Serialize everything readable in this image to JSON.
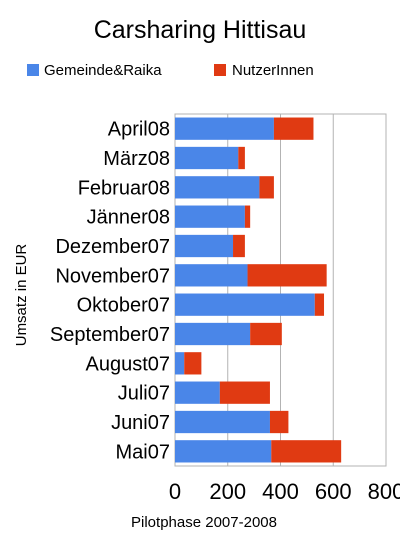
{
  "chart_data": {
    "type": "bar",
    "orientation": "horizontal",
    "stacked": true,
    "title": "Carsharing Hittisau",
    "xlabel": "Pilotphase 2007-2008",
    "ylabel": "Umsatz in EUR",
    "categories": [
      "April08",
      "März08",
      "Februar08",
      "Jänner08",
      "Dezember07",
      "November07",
      "Oktober07",
      "September07",
      "August07",
      "Juli07",
      "Juni07",
      "Mai07"
    ],
    "series": [
      {
        "name": "Gemeinde&Raika",
        "color": "#4a86e8",
        "values": [
          375,
          240,
          320,
          265,
          220,
          275,
          530,
          285,
          35,
          170,
          360,
          365
        ]
      },
      {
        "name": "NutzerInnen",
        "color": "#e03a12",
        "values": [
          150,
          25,
          55,
          20,
          45,
          300,
          35,
          120,
          65,
          190,
          70,
          265
        ]
      }
    ],
    "xlim": [
      0,
      800
    ],
    "xticks": [
      "0",
      "200",
      "400",
      "600",
      "800"
    ],
    "grid": true,
    "legend_position": "top"
  }
}
